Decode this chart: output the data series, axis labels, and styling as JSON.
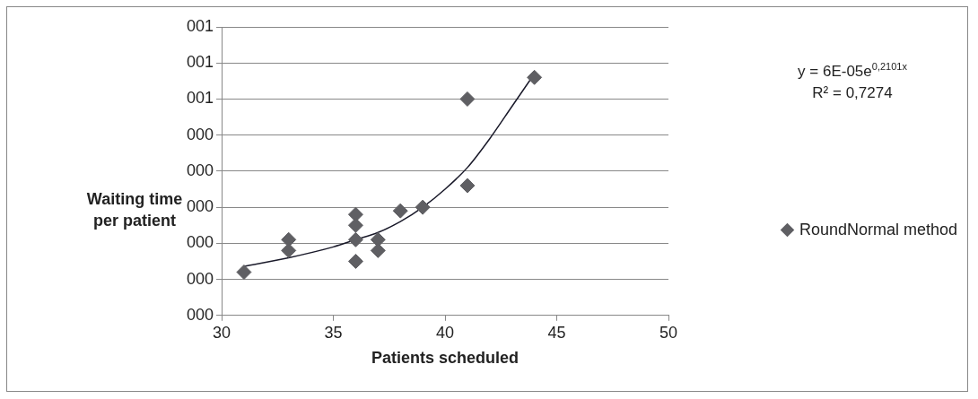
{
  "chart_data": {
    "type": "scatter",
    "xlabel": "Patients scheduled",
    "ylabel": "Waiting time per patient",
    "xlim": [
      30,
      50
    ],
    "xticks": [
      30,
      35,
      40,
      45,
      50
    ],
    "ylim": [
      -0.1,
      0.7
    ],
    "yticks": [
      {
        "value": -0.1,
        "label": "000"
      },
      {
        "value": 0,
        "label": "000"
      },
      {
        "value": 0.1,
        "label": "000"
      },
      {
        "value": 0.2,
        "label": "000"
      },
      {
        "value": 0.3,
        "label": "000"
      },
      {
        "value": 0.4,
        "label": "000"
      },
      {
        "value": 0.5,
        "label": "001"
      },
      {
        "value": 0.6,
        "label": "001"
      },
      {
        "value": 0.7,
        "label": "001"
      }
    ],
    "grid": "y",
    "legend": "right",
    "annotations": [
      "y = 6E-05e$^{0,2101x}$",
      "R² = 0,7274"
    ],
    "series": [
      {
        "name": "RoundNormal method",
        "marker": "diamond",
        "color": "#5f5f63",
        "x": [
          31,
          33,
          33,
          36,
          36,
          36,
          36,
          37,
          37,
          38,
          39,
          41,
          41,
          44
        ],
        "values": [
          0.02,
          0.11,
          0.08,
          0.18,
          0.15,
          0.11,
          0.05,
          0.11,
          0.08,
          0.19,
          0.2,
          0.5,
          0.26,
          0.56
        ]
      },
      {
        "type": "line",
        "marker": "none",
        "color": "#1a1a2a",
        "x": [
          31,
          33,
          35,
          36,
          37,
          38,
          39,
          40,
          41,
          42,
          43,
          44
        ],
        "values": [
          0.036,
          0.06,
          0.09,
          0.11,
          0.13,
          0.16,
          0.2,
          0.25,
          0.31,
          0.39,
          0.48,
          0.57
        ]
      }
    ]
  }
}
